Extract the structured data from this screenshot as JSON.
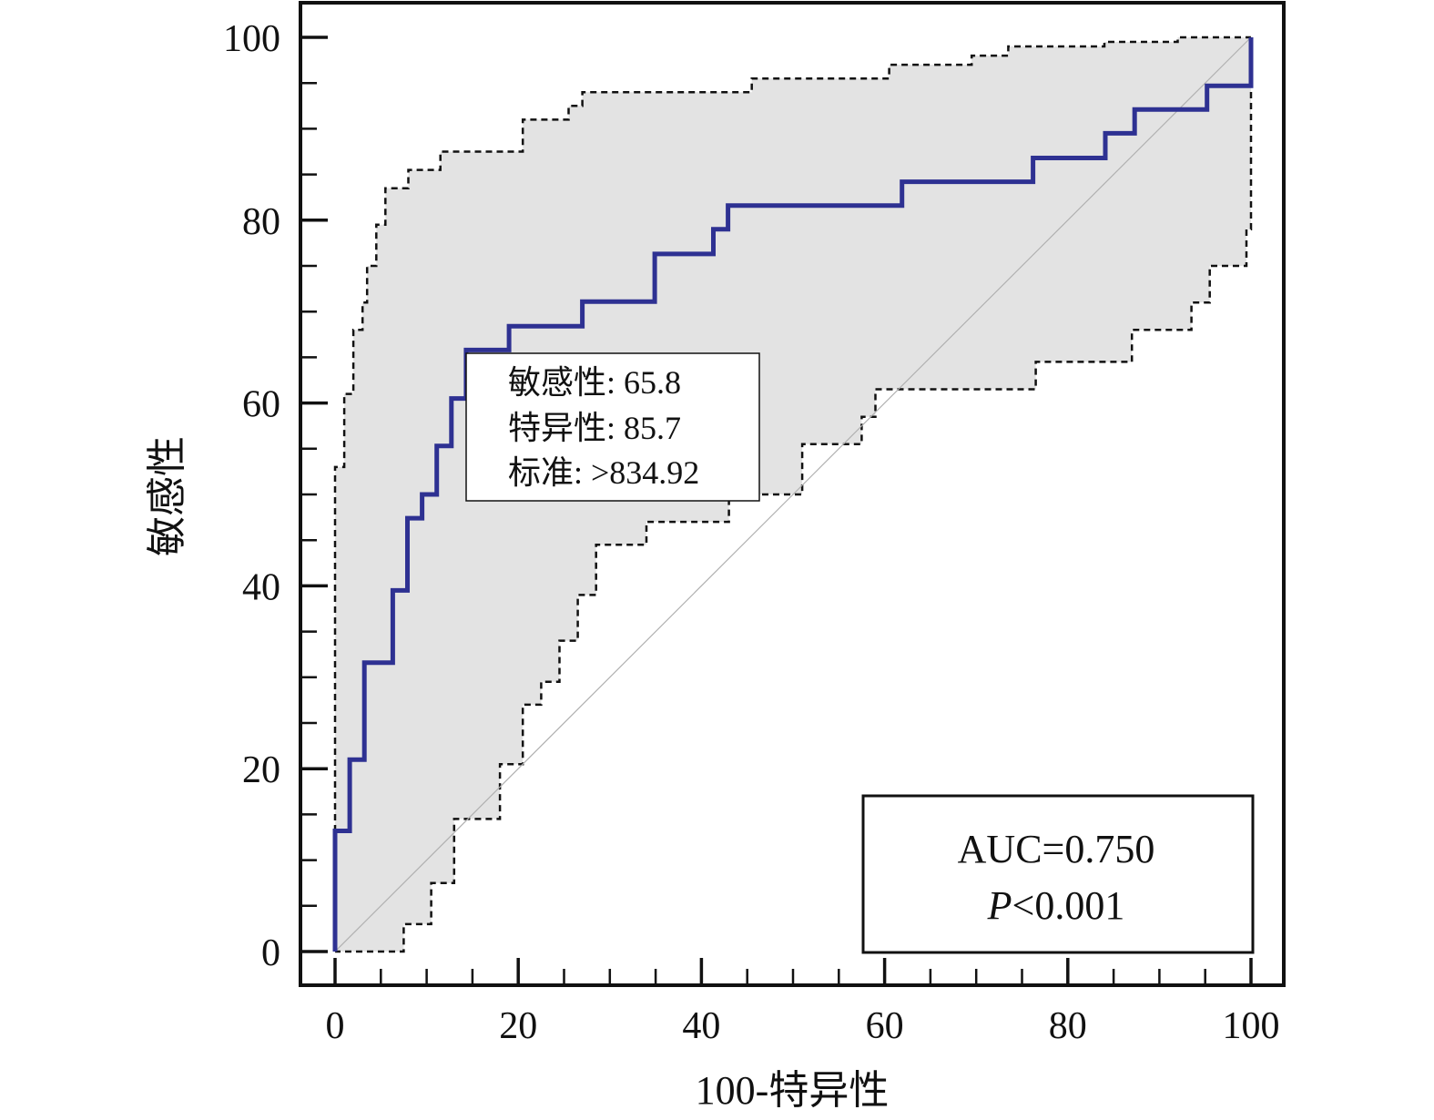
{
  "chart_data": {
    "type": "line",
    "xlabel": "100-特异性",
    "ylabel": "敏感性",
    "xlim": [
      0,
      100
    ],
    "ylim": [
      0,
      100
    ],
    "x_ticks": [
      0,
      20,
      40,
      60,
      80,
      100
    ],
    "y_ticks": [
      0,
      20,
      40,
      60,
      80,
      100
    ],
    "colors": {
      "roc": "#2e3192",
      "ci_fill": "#e3e3e3",
      "ci_line": "#111111",
      "diagonal": "#b0b0b0"
    },
    "roc_curve": [
      [
        0,
        0
      ],
      [
        0,
        13.2
      ],
      [
        1.6,
        13.2
      ],
      [
        1.6,
        21.0
      ],
      [
        3.2,
        21.0
      ],
      [
        3.2,
        31.6
      ],
      [
        6.3,
        31.6
      ],
      [
        6.3,
        39.5
      ],
      [
        7.9,
        39.5
      ],
      [
        7.9,
        47.4
      ],
      [
        9.5,
        47.4
      ],
      [
        9.5,
        50.0
      ],
      [
        11.1,
        50.0
      ],
      [
        11.1,
        55.3
      ],
      [
        12.7,
        55.3
      ],
      [
        12.7,
        60.5
      ],
      [
        14.3,
        60.5
      ],
      [
        14.3,
        65.8
      ],
      [
        19.0,
        65.8
      ],
      [
        19.0,
        68.4
      ],
      [
        27.0,
        68.4
      ],
      [
        27.0,
        71.1
      ],
      [
        34.9,
        71.1
      ],
      [
        34.9,
        76.3
      ],
      [
        41.3,
        76.3
      ],
      [
        41.3,
        79.0
      ],
      [
        42.9,
        79.0
      ],
      [
        42.9,
        81.6
      ],
      [
        61.9,
        81.6
      ],
      [
        61.9,
        84.2
      ],
      [
        76.2,
        84.2
      ],
      [
        76.2,
        86.8
      ],
      [
        84.1,
        86.8
      ],
      [
        84.1,
        89.5
      ],
      [
        87.3,
        89.5
      ],
      [
        87.3,
        92.1
      ],
      [
        95.2,
        92.1
      ],
      [
        95.2,
        94.7
      ],
      [
        100,
        94.7
      ],
      [
        100,
        100
      ]
    ],
    "ci_upper": [
      [
        0,
        0
      ],
      [
        0,
        41
      ],
      [
        0,
        53
      ],
      [
        1,
        53
      ],
      [
        1,
        61
      ],
      [
        2,
        61
      ],
      [
        2,
        68
      ],
      [
        3,
        68
      ],
      [
        3,
        71
      ],
      [
        3.5,
        71
      ],
      [
        3.5,
        75
      ],
      [
        4.5,
        75
      ],
      [
        4.5,
        79.5
      ],
      [
        5.5,
        79.5
      ],
      [
        5.5,
        83.5
      ],
      [
        8,
        83.5
      ],
      [
        8,
        85.5
      ],
      [
        11.5,
        85.5
      ],
      [
        11.5,
        87.5
      ],
      [
        20.5,
        87.5
      ],
      [
        20.5,
        91
      ],
      [
        25.5,
        91
      ],
      [
        25.5,
        92.5
      ],
      [
        27,
        92.5
      ],
      [
        27,
        94
      ],
      [
        45.5,
        94
      ],
      [
        45.5,
        95.5
      ],
      [
        60.5,
        95.5
      ],
      [
        60.5,
        97
      ],
      [
        69.5,
        97
      ],
      [
        69.5,
        98
      ],
      [
        73.5,
        98
      ],
      [
        73.5,
        99
      ],
      [
        84,
        99
      ],
      [
        84,
        99.5
      ],
      [
        92,
        99.5
      ],
      [
        92,
        100
      ],
      [
        100,
        100
      ]
    ],
    "ci_lower": [
      [
        100,
        100
      ],
      [
        100,
        79
      ],
      [
        99.5,
        79
      ],
      [
        99.5,
        75
      ],
      [
        95.5,
        75
      ],
      [
        95.5,
        71
      ],
      [
        93.5,
        71
      ],
      [
        93.5,
        68
      ],
      [
        87,
        68
      ],
      [
        87,
        64.5
      ],
      [
        76.5,
        64.5
      ],
      [
        76.5,
        61.5
      ],
      [
        59,
        61.5
      ],
      [
        59,
        58.5
      ],
      [
        57.5,
        58.5
      ],
      [
        57.5,
        55.5
      ],
      [
        51,
        55.5
      ],
      [
        51,
        50
      ],
      [
        43,
        50
      ],
      [
        43,
        47
      ],
      [
        34,
        47
      ],
      [
        34,
        44.5
      ],
      [
        28.5,
        44.5
      ],
      [
        28.5,
        39
      ],
      [
        26.5,
        39
      ],
      [
        26.5,
        34
      ],
      [
        24.5,
        34
      ],
      [
        24.5,
        29.5
      ],
      [
        22.5,
        29.5
      ],
      [
        22.5,
        27
      ],
      [
        20.5,
        27
      ],
      [
        20.5,
        20.5
      ],
      [
        18,
        20.5
      ],
      [
        18,
        14.5
      ],
      [
        13,
        14.5
      ],
      [
        13,
        7.5
      ],
      [
        10.5,
        7.5
      ],
      [
        10.5,
        3
      ],
      [
        7.5,
        3
      ],
      [
        7.5,
        0
      ],
      [
        0,
        0
      ]
    ],
    "annotations": {
      "criterion_box": {
        "sensitivity": "敏感性: 65.8",
        "specificity": "特异性: 85.7",
        "criterion": "标准: >834.92"
      },
      "auc_box": {
        "auc": "AUC=0.750",
        "p_label": "P",
        "p_value": "<0.001"
      }
    },
    "grid": false
  }
}
